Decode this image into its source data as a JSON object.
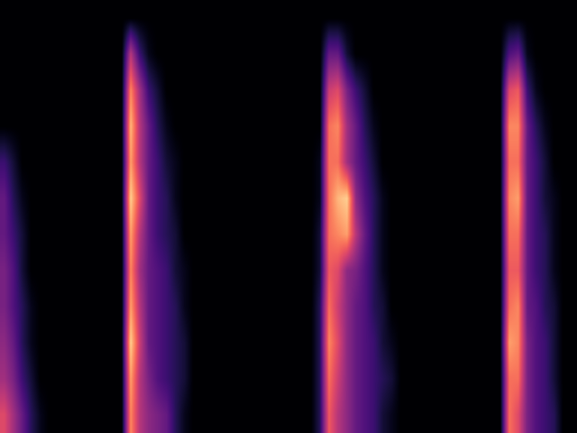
{
  "chart_data": {
    "type": "heatmap",
    "color": "magma",
    "zlim": [
      0,
      1
    ],
    "tick_labels": false,
    "cells": [
      [
        0,
        0,
        0,
        0,
        0,
        0,
        0,
        0,
        0,
        0,
        0,
        0,
        0,
        0,
        0,
        0,
        0,
        0,
        0,
        0,
        0,
        0,
        0,
        0,
        0,
        0,
        0,
        0,
        0,
        0,
        0,
        0,
        0,
        0,
        0,
        0,
        0,
        0,
        0,
        0,
        0,
        0,
        0,
        0,
        0,
        0,
        0,
        0,
        0,
        0,
        0,
        0,
        0,
        0,
        0,
        0,
        0,
        0,
        0,
        0,
        0,
        0,
        0,
        0
      ],
      [
        0,
        0,
        0,
        0,
        0,
        0,
        0,
        0,
        0,
        0,
        0,
        0,
        0,
        0,
        0.5,
        0.2,
        0.05,
        0,
        0,
        0,
        0,
        0,
        0,
        0,
        0,
        0,
        0,
        0,
        0,
        0,
        0,
        0,
        0,
        0,
        0,
        0,
        0.3,
        0.3,
        0.1,
        0,
        0,
        0,
        0,
        0,
        0,
        0,
        0,
        0,
        0,
        0,
        0,
        0,
        0,
        0,
        0,
        0,
        0.25,
        0.3,
        0.05,
        0,
        0,
        0,
        0,
        0
      ],
      [
        0,
        0,
        0,
        0,
        0,
        0,
        0,
        0,
        0,
        0,
        0,
        0,
        0,
        0,
        0.75,
        0.45,
        0.2,
        0.1,
        0,
        0,
        0,
        0,
        0,
        0,
        0,
        0,
        0,
        0,
        0,
        0,
        0,
        0,
        0,
        0,
        0,
        0,
        0.55,
        0.6,
        0.35,
        0.2,
        0.1,
        0,
        0,
        0,
        0,
        0,
        0,
        0,
        0,
        0,
        0,
        0,
        0,
        0,
        0,
        0,
        0.6,
        0.65,
        0.2,
        0.05,
        0,
        0,
        0,
        0
      ],
      [
        0,
        0,
        0,
        0,
        0,
        0,
        0,
        0,
        0,
        0,
        0,
        0,
        0,
        0,
        0.85,
        0.5,
        0.3,
        0.15,
        0.05,
        0,
        0,
        0,
        0,
        0,
        0,
        0,
        0,
        0,
        0,
        0,
        0,
        0,
        0,
        0,
        0,
        0,
        0.7,
        0.75,
        0.45,
        0.3,
        0.15,
        0.05,
        0,
        0,
        0,
        0,
        0,
        0,
        0,
        0,
        0,
        0,
        0,
        0,
        0,
        0,
        0.75,
        0.75,
        0.3,
        0.15,
        0.05,
        0,
        0,
        0
      ],
      [
        0.2,
        0.1,
        0,
        0,
        0,
        0,
        0,
        0,
        0,
        0,
        0,
        0,
        0,
        0,
        0.8,
        0.5,
        0.3,
        0.2,
        0.1,
        0.05,
        0,
        0,
        0,
        0,
        0,
        0,
        0,
        0,
        0,
        0,
        0,
        0,
        0,
        0,
        0,
        0.05,
        0.7,
        0.7,
        0.45,
        0.3,
        0.2,
        0.1,
        0,
        0,
        0,
        0,
        0,
        0,
        0,
        0,
        0,
        0,
        0,
        0,
        0,
        0,
        0.7,
        0.7,
        0.3,
        0.2,
        0.1,
        0,
        0,
        0
      ],
      [
        0.3,
        0.15,
        0.05,
        0,
        0,
        0,
        0,
        0,
        0,
        0,
        0,
        0,
        0,
        0,
        0.9,
        0.6,
        0.3,
        0.2,
        0.15,
        0.05,
        0,
        0,
        0,
        0,
        0,
        0,
        0,
        0,
        0,
        0,
        0,
        0,
        0,
        0,
        0,
        0.05,
        0.7,
        0.85,
        0.9,
        0.4,
        0.25,
        0.15,
        0.05,
        0,
        0,
        0,
        0,
        0,
        0,
        0,
        0,
        0,
        0,
        0,
        0,
        0,
        0.75,
        0.8,
        0.3,
        0.2,
        0.1,
        0.05,
        0,
        0
      ],
      [
        0.3,
        0.2,
        0.1,
        0,
        0,
        0,
        0,
        0,
        0,
        0,
        0,
        0,
        0,
        0,
        0.8,
        0.5,
        0.3,
        0.2,
        0.15,
        0.1,
        0,
        0,
        0,
        0,
        0,
        0,
        0,
        0,
        0,
        0,
        0,
        0,
        0,
        0,
        0,
        0.1,
        0.7,
        0.75,
        0.8,
        0.5,
        0.3,
        0.15,
        0.05,
        0,
        0,
        0,
        0,
        0,
        0,
        0,
        0,
        0,
        0,
        0,
        0,
        0,
        0.7,
        0.7,
        0.3,
        0.2,
        0.15,
        0.05,
        0,
        0
      ],
      [
        0.35,
        0.25,
        0.1,
        0,
        0,
        0,
        0,
        0,
        0,
        0,
        0,
        0,
        0,
        0,
        0.75,
        0.45,
        0.3,
        0.25,
        0.2,
        0.1,
        0.05,
        0,
        0,
        0,
        0,
        0,
        0,
        0,
        0,
        0,
        0,
        0,
        0,
        0,
        0,
        0.1,
        0.65,
        0.6,
        0.4,
        0.35,
        0.25,
        0.15,
        0.05,
        0,
        0,
        0,
        0,
        0,
        0,
        0,
        0,
        0,
        0,
        0,
        0,
        0,
        0.65,
        0.65,
        0.3,
        0.2,
        0.15,
        0.05,
        0,
        0
      ],
      [
        0.35,
        0.25,
        0.15,
        0.05,
        0,
        0,
        0,
        0,
        0,
        0,
        0,
        0,
        0,
        0,
        0.8,
        0.5,
        0.3,
        0.25,
        0.2,
        0.15,
        0.05,
        0,
        0,
        0,
        0,
        0,
        0,
        0,
        0,
        0,
        0,
        0,
        0,
        0,
        0,
        0.15,
        0.7,
        0.55,
        0.4,
        0.3,
        0.25,
        0.15,
        0.1,
        0,
        0,
        0,
        0,
        0,
        0,
        0,
        0,
        0,
        0,
        0,
        0,
        0,
        0.7,
        0.75,
        0.3,
        0.25,
        0.15,
        0.1,
        0,
        0
      ],
      [
        0.4,
        0.3,
        0.15,
        0.05,
        0,
        0,
        0,
        0,
        0,
        0,
        0,
        0,
        0,
        0,
        0.9,
        0.55,
        0.3,
        0.25,
        0.2,
        0.15,
        0.1,
        0,
        0,
        0,
        0,
        0,
        0,
        0,
        0,
        0,
        0,
        0,
        0,
        0,
        0,
        0.15,
        0.75,
        0.6,
        0.4,
        0.3,
        0.25,
        0.2,
        0.1,
        0.05,
        0,
        0,
        0,
        0,
        0,
        0,
        0,
        0,
        0,
        0,
        0,
        0,
        0.8,
        0.75,
        0.35,
        0.25,
        0.2,
        0.1,
        0,
        0
      ],
      [
        0.45,
        0.35,
        0.2,
        0.1,
        0,
        0,
        0,
        0,
        0,
        0,
        0,
        0,
        0,
        0,
        0.8,
        0.5,
        0.35,
        0.25,
        0.2,
        0.15,
        0.1,
        0,
        0,
        0,
        0,
        0,
        0,
        0,
        0,
        0,
        0,
        0,
        0,
        0,
        0,
        0.15,
        0.7,
        0.55,
        0.4,
        0.3,
        0.25,
        0.2,
        0.15,
        0.1,
        0,
        0,
        0,
        0,
        0,
        0,
        0,
        0,
        0,
        0,
        0,
        0,
        0.7,
        0.7,
        0.35,
        0.25,
        0.2,
        0.1,
        0,
        0
      ],
      [
        0.6,
        0.45,
        0.3,
        0.15,
        0.05,
        0,
        0,
        0,
        0,
        0,
        0,
        0,
        0,
        0,
        0.75,
        0.5,
        0.4,
        0.35,
        0.3,
        0.15,
        0.05,
        0,
        0,
        0,
        0,
        0,
        0,
        0,
        0,
        0,
        0,
        0,
        0,
        0,
        0,
        0.15,
        0.65,
        0.5,
        0.4,
        0.3,
        0.25,
        0.2,
        0.1,
        0.05,
        0,
        0,
        0,
        0,
        0,
        0,
        0,
        0,
        0,
        0,
        0,
        0,
        0.7,
        0.6,
        0.35,
        0.25,
        0.2,
        0.15,
        0,
        0
      ]
    ]
  }
}
